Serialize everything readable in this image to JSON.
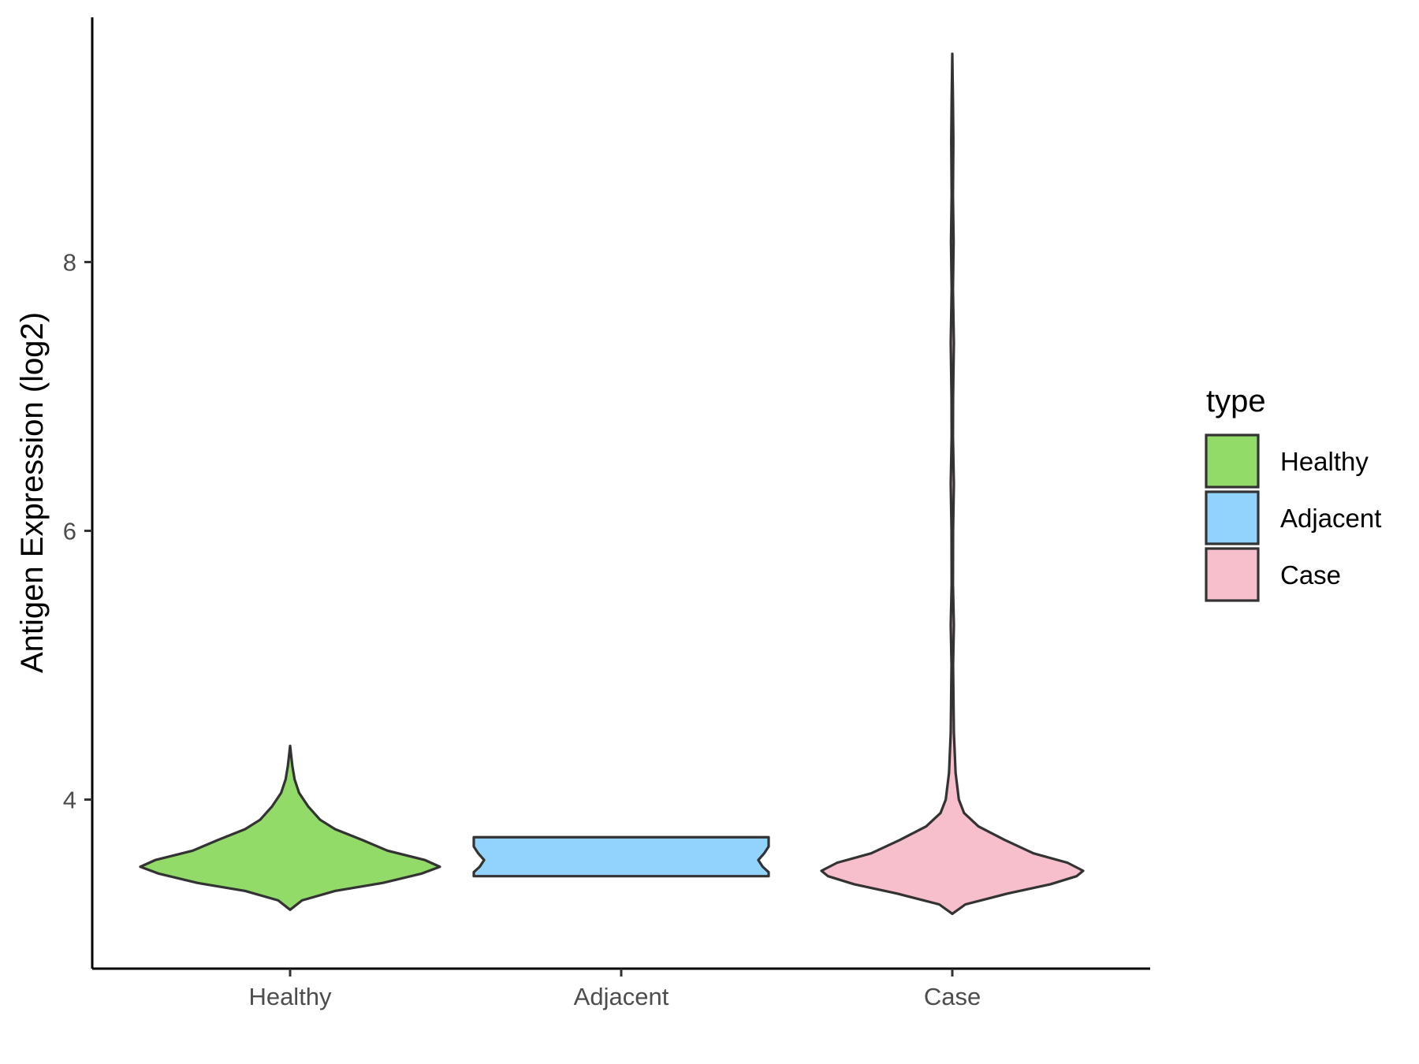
{
  "chart_data": {
    "type": "violin",
    "ylabel": "Antigen Expression (log2)",
    "xlabel": "",
    "categories": [
      "Healthy",
      "Adjacent",
      "Case"
    ],
    "ylim": [
      2.75,
      9.8
    ],
    "yticks": [
      4,
      6,
      8
    ],
    "legend": {
      "title": "type",
      "placement": "right",
      "entries": [
        "Healthy",
        "Adjacent",
        "Case"
      ]
    },
    "colors": {
      "Healthy": "#93DB69",
      "Adjacent": "#92D3FC",
      "Case": "#F7BFCB",
      "outline": "#333333"
    },
    "series": [
      {
        "category": "Healthy",
        "min": 3.18,
        "max": 4.4,
        "density": [
          [
            3.18,
            0.0
          ],
          [
            3.25,
            0.08
          ],
          [
            3.32,
            0.3
          ],
          [
            3.38,
            0.62
          ],
          [
            3.45,
            0.88
          ],
          [
            3.5,
            1.0
          ],
          [
            3.55,
            0.9
          ],
          [
            3.62,
            0.65
          ],
          [
            3.7,
            0.48
          ],
          [
            3.78,
            0.3
          ],
          [
            3.85,
            0.2
          ],
          [
            3.95,
            0.12
          ],
          [
            4.05,
            0.06
          ],
          [
            4.15,
            0.03
          ],
          [
            4.25,
            0.015
          ],
          [
            4.4,
            0.0
          ]
        ]
      },
      {
        "category": "Adjacent",
        "min": 3.43,
        "max": 3.72,
        "density": [
          [
            3.43,
            1.0
          ],
          [
            3.46,
            1.0
          ],
          [
            3.5,
            0.96
          ],
          [
            3.55,
            0.93
          ],
          [
            3.6,
            0.97
          ],
          [
            3.65,
            1.0
          ],
          [
            3.72,
            1.0
          ]
        ]
      },
      {
        "category": "Case",
        "min": 3.15,
        "max": 9.55,
        "density": [
          [
            3.15,
            0.0
          ],
          [
            3.22,
            0.1
          ],
          [
            3.3,
            0.42
          ],
          [
            3.37,
            0.75
          ],
          [
            3.43,
            0.95
          ],
          [
            3.47,
            1.0
          ],
          [
            3.53,
            0.88
          ],
          [
            3.6,
            0.62
          ],
          [
            3.7,
            0.4
          ],
          [
            3.8,
            0.2
          ],
          [
            3.9,
            0.09
          ],
          [
            4.0,
            0.05
          ],
          [
            4.2,
            0.025
          ],
          [
            4.5,
            0.012
          ],
          [
            5.0,
            0.006
          ],
          [
            5.3,
            0.012
          ],
          [
            5.6,
            0.005
          ],
          [
            6.0,
            0.006
          ],
          [
            6.35,
            0.012
          ],
          [
            6.7,
            0.005
          ],
          [
            7.0,
            0.006
          ],
          [
            7.4,
            0.012
          ],
          [
            7.8,
            0.005
          ],
          [
            8.15,
            0.01
          ],
          [
            8.5,
            0.005
          ],
          [
            8.9,
            0.008
          ],
          [
            9.2,
            0.005
          ],
          [
            9.55,
            0.0
          ]
        ]
      }
    ]
  }
}
